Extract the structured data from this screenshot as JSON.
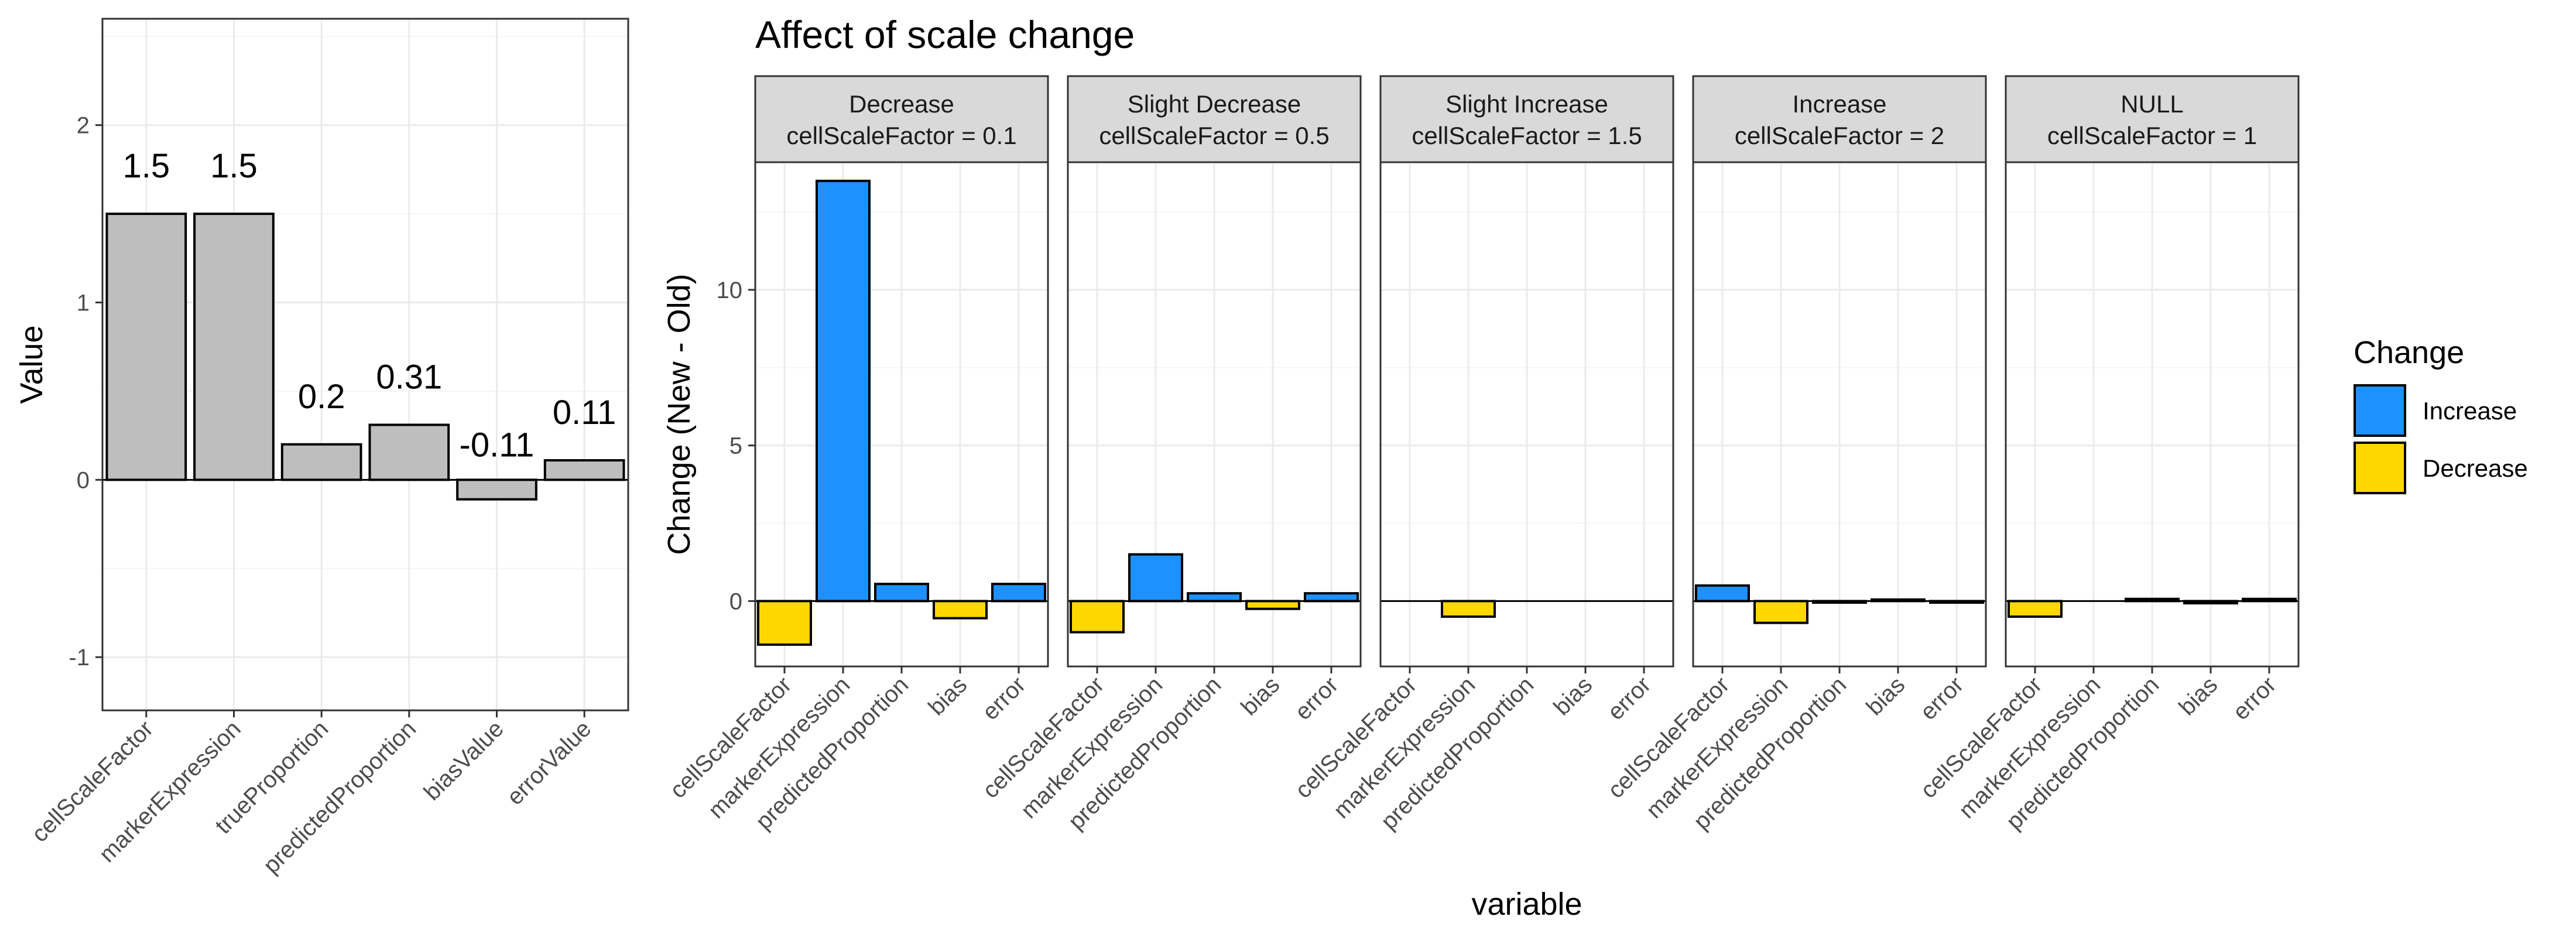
{
  "chart_data": [
    {
      "type": "bar",
      "categories": [
        "cellScaleFactor",
        "markerExpression",
        "trueProportion",
        "predictedProportion",
        "biasValue",
        "errorValue"
      ],
      "values": [
        1.5,
        1.5,
        0.2,
        0.31,
        -0.11,
        0.11
      ],
      "data_labels": [
        "1.5",
        "1.5",
        "0.2",
        "0.31",
        "-0.11",
        "0.11"
      ],
      "title": "",
      "xlabel": "",
      "ylabel": "Value",
      "ylim": [
        -1.3,
        2.6
      ],
      "yticks": [
        -1,
        0,
        1,
        2
      ],
      "grid": true,
      "bar_color": "#bebebe"
    },
    {
      "type": "bar",
      "title": "Affect of scale change",
      "xlabel": "variable",
      "ylabel": "Change (New - Old)",
      "ylim": [
        -2.1,
        14.1
      ],
      "yticks": [
        0,
        5,
        10
      ],
      "grid": true,
      "categories": [
        "cellScaleFactor",
        "markerExpression",
        "predictedProportion",
        "bias",
        "error"
      ],
      "facets": [
        {
          "strip_line1": "Decrease",
          "strip_line2": "cellScaleFactor = 0.1",
          "values": [
            -1.4,
            13.5,
            0.55,
            -0.55,
            0.55
          ]
        },
        {
          "strip_line1": "Slight Decrease",
          "strip_line2": "cellScaleFactor = 0.5",
          "values": [
            -1.0,
            1.5,
            0.25,
            -0.25,
            0.25
          ]
        },
        {
          "strip_line1": "Slight Increase",
          "strip_line2": "cellScaleFactor = 1.5",
          "values": [
            0,
            -0.5,
            0,
            0,
            0
          ]
        },
        {
          "strip_line1": "Increase",
          "strip_line2": "cellScaleFactor = 2",
          "values": [
            0.5,
            -0.7,
            -0.05,
            0.05,
            -0.05
          ]
        },
        {
          "strip_line1": "NULL",
          "strip_line2": "cellScaleFactor = 1",
          "values": [
            -0.5,
            0,
            0.07,
            -0.07,
            0.07
          ]
        }
      ],
      "legend": {
        "title": "Change",
        "placement": "right",
        "entries": [
          {
            "label": "Increase",
            "color": "#1e90ff"
          },
          {
            "label": "Decrease",
            "color": "#ffd700"
          }
        ]
      }
    }
  ]
}
